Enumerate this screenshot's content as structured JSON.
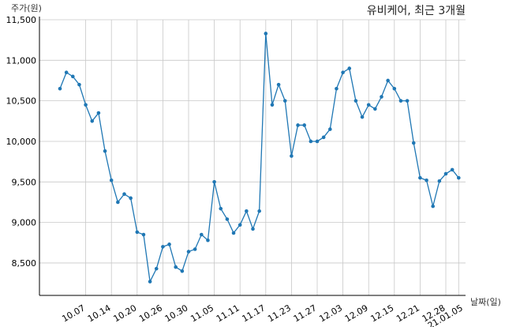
{
  "chart_data": {
    "type": "line",
    "title": "유비케어, 최근 3개월",
    "ylabel": "주가(원)",
    "xlabel": "날짜(일)",
    "ylim": [
      8100,
      11500
    ],
    "yticks": [
      8500,
      9000,
      9500,
      10000,
      10500,
      11000,
      11500
    ],
    "ytick_labels": [
      "8,500",
      "9,000",
      "9,500",
      "10,000",
      "10,500",
      "11,000",
      "11,500"
    ],
    "grid": true,
    "x_tick_indices": [
      4,
      8,
      12,
      16,
      20,
      24,
      28,
      32,
      36,
      40,
      44,
      48,
      52,
      56,
      60
    ],
    "x_tick_labels": [
      "10.07",
      "10.14",
      "10.20",
      "10.26",
      "10.30",
      "11.05",
      "11.11",
      "11.17",
      "11.23",
      "11.27",
      "12.03",
      "12.09",
      "12.15",
      "12.21",
      "12.28"
    ],
    "x_last_label": "21.01.05",
    "series": [
      {
        "color": "#1f77b4",
        "values": [
          10650,
          10850,
          10800,
          10700,
          10450,
          10250,
          10350,
          9880,
          9520,
          9250,
          9350,
          9300,
          8880,
          8850,
          8270,
          8430,
          8700,
          8730,
          8450,
          8400,
          8640,
          8670,
          8850,
          8780,
          9500,
          9170,
          9040,
          8870,
          8970,
          9140,
          8920,
          9140,
          11330,
          10450,
          10700,
          10500,
          9820,
          10200,
          10200,
          10000,
          10000,
          10050,
          10150,
          10650,
          10850,
          10900,
          10500,
          10300,
          10450,
          10400,
          10550,
          10750,
          10650,
          10500,
          10500,
          9980,
          9550,
          9520,
          9200,
          9510,
          9600,
          9650,
          9550
        ]
      }
    ]
  }
}
